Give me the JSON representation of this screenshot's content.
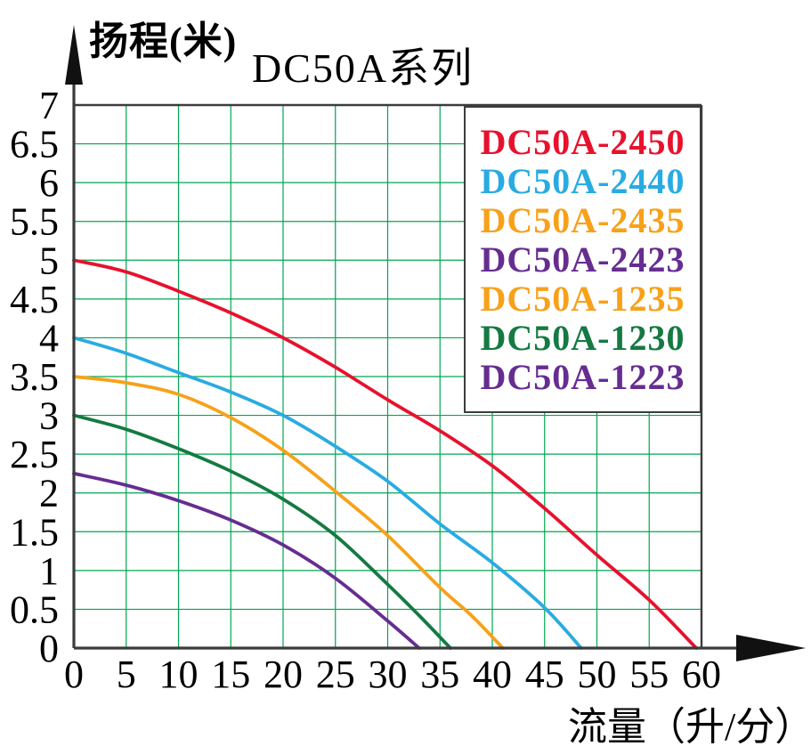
{
  "legend": {
    "items": [
      {
        "label": "DC50A-2450",
        "color": "#e8112d"
      },
      {
        "label": "DC50A-2440",
        "color": "#29abe2"
      },
      {
        "label": "DC50A-2435",
        "color": "#f7a11a"
      },
      {
        "label": "DC50A-2423",
        "color": "#662d91"
      },
      {
        "label": "DC50A-1235",
        "color": "#f7a11a"
      },
      {
        "label": "DC50A-1230",
        "color": "#147a42"
      },
      {
        "label": "DC50A-1223",
        "color": "#662d91"
      }
    ]
  },
  "chart_data": {
    "type": "line",
    "title": "DC50A系列",
    "ylabel": "扬程(米)",
    "xlabel": "流量（升/分）",
    "xlim": [
      0,
      60
    ],
    "xstep": 5,
    "ylim": [
      0,
      7
    ],
    "ystep": 0.5,
    "grid": true,
    "grid_color": "#00a651",
    "axis_color": "#3c3c3c",
    "legend_position": "top-right",
    "xticks": [
      "0",
      "5",
      "10",
      "15",
      "20",
      "25",
      "30",
      "35",
      "40",
      "45",
      "50",
      "55",
      "60"
    ],
    "yticks": [
      "0",
      "0.5",
      "1",
      "1.5",
      "2",
      "2.5",
      "3",
      "3.5",
      "4",
      "4.5",
      "5",
      "5.5",
      "6",
      "6.5",
      "7"
    ],
    "series": [
      {
        "id": "dc50a-2450",
        "name": "DC50A-2450",
        "color": "#e8112d",
        "points": [
          [
            0,
            5.0
          ],
          [
            5,
            4.85
          ],
          [
            10,
            4.6
          ],
          [
            15,
            4.32
          ],
          [
            20,
            4.0
          ],
          [
            25,
            3.62
          ],
          [
            30,
            3.2
          ],
          [
            35,
            2.8
          ],
          [
            40,
            2.35
          ],
          [
            45,
            1.8
          ],
          [
            50,
            1.2
          ],
          [
            55,
            0.62
          ],
          [
            59.5,
            0
          ]
        ]
      },
      {
        "id": "dc50a-2440",
        "name": "DC50A-2440",
        "color": "#29abe2",
        "points": [
          [
            0,
            4.0
          ],
          [
            5,
            3.8
          ],
          [
            10,
            3.55
          ],
          [
            15,
            3.3
          ],
          [
            20,
            3.0
          ],
          [
            25,
            2.6
          ],
          [
            30,
            2.15
          ],
          [
            35,
            1.6
          ],
          [
            40,
            1.1
          ],
          [
            45,
            0.52
          ],
          [
            48.5,
            0
          ]
        ]
      },
      {
        "id": "dc50a-2435-1235",
        "name": "DC50A-2435 / DC50A-1235",
        "color": "#f7a11a",
        "points": [
          [
            0,
            3.5
          ],
          [
            5,
            3.42
          ],
          [
            10,
            3.27
          ],
          [
            15,
            2.97
          ],
          [
            20,
            2.55
          ],
          [
            25,
            2.02
          ],
          [
            30,
            1.45
          ],
          [
            35,
            0.78
          ],
          [
            38,
            0.42
          ],
          [
            41,
            0
          ]
        ]
      },
      {
        "id": "dc50a-1230",
        "name": "DC50A-1230",
        "color": "#147a42",
        "points": [
          [
            0,
            3.0
          ],
          [
            5,
            2.82
          ],
          [
            10,
            2.57
          ],
          [
            15,
            2.28
          ],
          [
            20,
            1.92
          ],
          [
            25,
            1.45
          ],
          [
            30,
            0.82
          ],
          [
            33,
            0.42
          ],
          [
            36,
            0
          ]
        ]
      },
      {
        "id": "dc50a-2423-1223",
        "name": "DC50A-2423 / DC50A-1223",
        "color": "#662d91",
        "points": [
          [
            0,
            2.25
          ],
          [
            5,
            2.1
          ],
          [
            10,
            1.9
          ],
          [
            15,
            1.65
          ],
          [
            20,
            1.33
          ],
          [
            25,
            0.9
          ],
          [
            30,
            0.35
          ],
          [
            33,
            0
          ]
        ]
      }
    ]
  }
}
